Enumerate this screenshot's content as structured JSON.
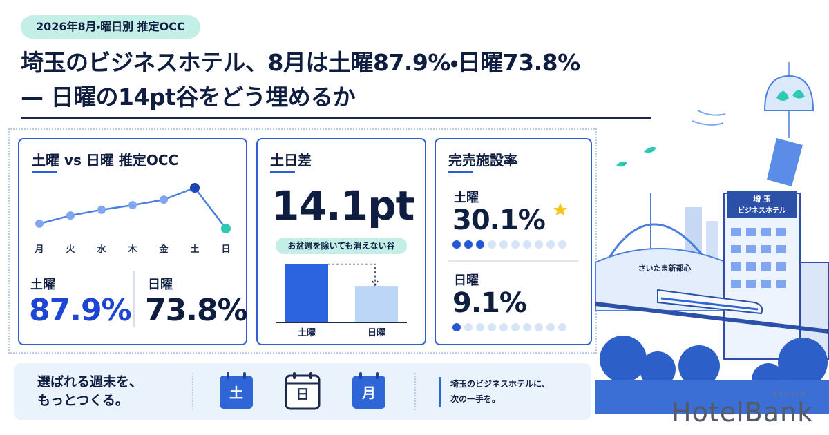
{
  "badge": "2026年8月・曜日別 推定OCC",
  "title": [
    "埼玉のビジネスホテル、8月は土曜87.9%・日曜73.8%",
    "— 日曜の14pt谷をどう埋めるか"
  ],
  "chart_data": [
    {
      "type": "line",
      "title": "土曜 vs 日曜 推定OCC",
      "categories": [
        "月",
        "火",
        "水",
        "木",
        "金",
        "土",
        "日"
      ],
      "values": [
        75.5,
        78.3,
        80.3,
        81.9,
        83.8,
        87.9,
        73.8
      ],
      "color": "#4a7fe0",
      "point_colors": [
        "#7fa6ee",
        "#7fa6ee",
        "#7fa6ee",
        "#7fa6ee",
        "#7fa6ee",
        "#1d46b5",
        "#2ec9b5"
      ],
      "stats": [
        {
          "label": "土曜",
          "value": "87.9%"
        },
        {
          "label": "日曜",
          "value": "73.8%"
        }
      ]
    },
    {
      "type": "bar",
      "title": "土日差",
      "headline": "14.1pt",
      "note": "お盆週を除いても消えない谷",
      "categories": [
        "土曜",
        "日曜"
      ],
      "values": [
        87.9,
        73.8
      ],
      "colors": [
        "#2c63de",
        "#bcd6f8"
      ],
      "ylim": [
        50,
        90
      ]
    },
    {
      "type": "dots",
      "title": "完売施設率",
      "categories": [
        "土曜",
        "日曜"
      ],
      "values": [
        30.1,
        9.1
      ],
      "value_labels": [
        "30.1%",
        "9.1%"
      ],
      "ylim": [
        0,
        100
      ],
      "color": "#2457d6",
      "empty_color": "#d6e4f7"
    }
  ],
  "banner": {
    "tagline": [
      "選ばれる週末を、",
      "もっとつくる。"
    ],
    "calendar": [
      "土",
      "日",
      "月"
    ],
    "message": [
      "埼玉のビジネスホテルに、",
      "次の一手を。"
    ]
  },
  "illustration": {
    "hotel_sign": [
      "埼 玉",
      "ビジネスホテル"
    ],
    "station": "さいたま新都心"
  },
  "logo": {
    "name": "HotelBank",
    "kana": "ホテルバンク"
  }
}
